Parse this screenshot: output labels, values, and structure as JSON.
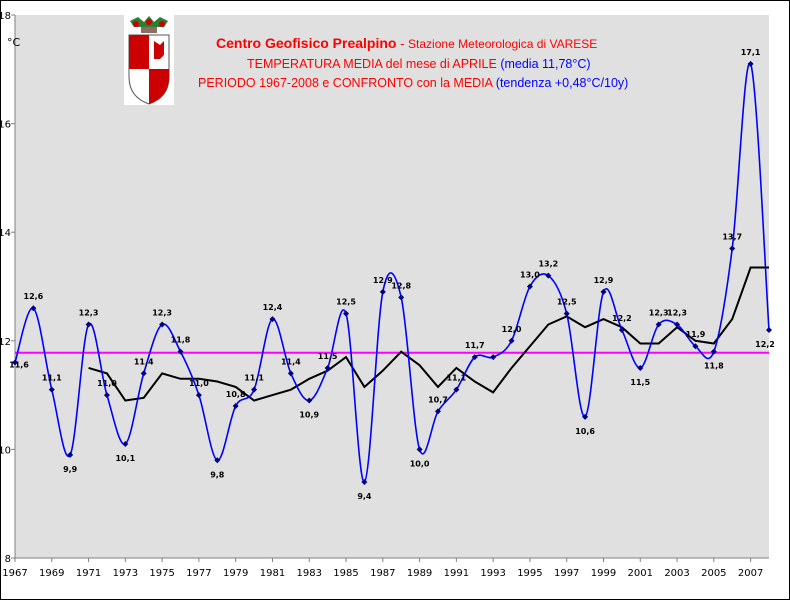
{
  "chart_data": {
    "type": "line",
    "title_parts": {
      "org": "Centro Geofisico Prealpino",
      "sep": " - ",
      "station": "Stazione Meteorologica di VARESE",
      "line2_main": "TEMPERATURA MEDIA del mese di APRILE ",
      "line2_note": "(media 11,78°C)",
      "line3_main": "PERIODO 1967-2008 e CONFRONTO con la MEDIA ",
      "line3_note": "(tendenza +0,48°C/10y)"
    },
    "ylabel": "°C",
    "ylim": [
      8,
      18
    ],
    "xlim": [
      1967,
      2008
    ],
    "y_ticks": [
      "8",
      "10",
      "12",
      "14",
      "16",
      "18"
    ],
    "x_ticks": [
      "1967",
      "1969",
      "1971",
      "1973",
      "1975",
      "1977",
      "1979",
      "1981",
      "1983",
      "1985",
      "1987",
      "1989",
      "1991",
      "1993",
      "1995",
      "1997",
      "1999",
      "2001",
      "2003",
      "2005",
      "2007"
    ],
    "grid": false,
    "series": [
      {
        "color": "#0000ff",
        "x": [
          1967,
          1968,
          1969,
          1970,
          1971,
          1972,
          1973,
          1974,
          1975,
          1976,
          1977,
          1978,
          1979,
          1980,
          1981,
          1982,
          1983,
          1984,
          1985,
          1986,
          1987,
          1988,
          1989,
          1990,
          1991,
          1992,
          1993,
          1994,
          1995,
          1996,
          1997,
          1998,
          1999,
          2000,
          2001,
          2002,
          2003,
          2004,
          2005,
          2006,
          2007,
          2008
        ],
        "values": [
          11.6,
          12.6,
          11.1,
          9.9,
          12.3,
          11.0,
          10.1,
          11.4,
          12.3,
          11.8,
          11.0,
          9.8,
          10.8,
          11.1,
          12.4,
          11.4,
          10.9,
          11.5,
          12.5,
          9.4,
          12.9,
          12.8,
          10.0,
          10.7,
          11.1,
          11.7,
          11.7,
          12.0,
          13.0,
          13.2,
          12.5,
          10.6,
          12.9,
          12.2,
          11.5,
          12.3,
          12.3,
          11.9,
          11.8,
          13.7,
          17.1,
          12.2
        ],
        "labels": [
          "11,6",
          "12,6",
          "11,1",
          "9,9",
          "12,3",
          "11,0",
          "10,1",
          "11,4",
          "12,3",
          "11,8",
          "11,0",
          "9,8",
          "10,8",
          "11,1",
          "12,4",
          "11,4",
          "10,9",
          "11,5",
          "12,5",
          "9,4",
          "12,9",
          "12,8",
          "10,0",
          "10,7",
          "11,1",
          "11,7",
          "",
          "12,0",
          "13,0",
          "13,2",
          "12,5",
          "10,6",
          "12,9",
          "12,2",
          "11,5",
          "12,3",
          "12,3",
          "11,9",
          "11,8",
          "13,7",
          "17,1",
          "12,2"
        ]
      },
      {
        "color": "#000000",
        "x": [
          1971,
          1972,
          1973,
          1974,
          1975,
          1976,
          1977,
          1978,
          1979,
          1980,
          1981,
          1982,
          1983,
          1984,
          1985,
          1986,
          1987,
          1988,
          1989,
          1990,
          1991,
          1992,
          1993,
          1994,
          1995,
          1996,
          1997,
          1998,
          1999,
          2000,
          2001,
          2002,
          2003,
          2004,
          2005,
          2006,
          2007,
          2008
        ],
        "values": [
          11.5,
          11.4,
          10.9,
          10.95,
          11.4,
          11.3,
          11.3,
          11.25,
          11.15,
          10.9,
          11.0,
          11.1,
          11.3,
          11.45,
          11.7,
          11.15,
          11.45,
          11.8,
          11.55,
          11.15,
          11.5,
          11.25,
          11.05,
          11.5,
          11.9,
          12.3,
          12.45,
          12.25,
          12.4,
          12.25,
          11.95,
          11.95,
          12.25,
          12.0,
          11.95,
          12.4,
          13.35,
          13.35
        ]
      },
      {
        "color": "#ff00ff",
        "x": [
          1967,
          2008
        ],
        "values": [
          11.78,
          11.78
        ]
      }
    ]
  },
  "logo": {
    "icon": "coat-of-arms-icon",
    "colors": [
      "#cc0000",
      "#ffffff",
      "#2e7d32"
    ]
  }
}
